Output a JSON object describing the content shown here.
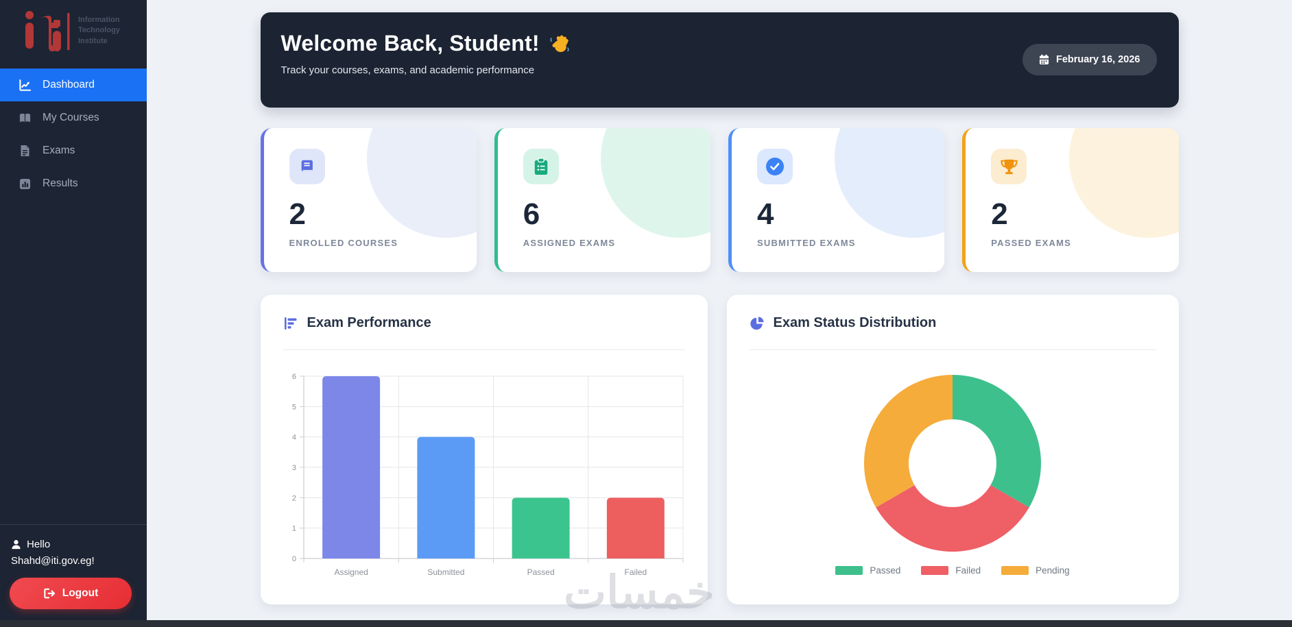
{
  "sidebar": {
    "logo": {
      "mark": "iti",
      "lines": [
        "Information",
        "Technology",
        "Institute"
      ],
      "mark_color": "#b23737"
    },
    "items": [
      {
        "label": "Dashboard",
        "icon": "chart-line-icon",
        "active": true
      },
      {
        "label": "My Courses",
        "icon": "book-open-icon",
        "active": false
      },
      {
        "label": "Exams",
        "icon": "file-lines-icon",
        "active": false
      },
      {
        "label": "Results",
        "icon": "chart-square-icon",
        "active": false
      }
    ],
    "active_color": "#1a71f3",
    "footer": {
      "greeting": "Hello",
      "email": "Shahd@iti.gov.eg!",
      "logout_label": "Logout",
      "logout_color": "#e94045"
    }
  },
  "banner": {
    "title": "Welcome Back, Student!",
    "subtitle": "Track your courses, exams, and academic performance",
    "date": "February 16, 2026",
    "bg": "#1c2433"
  },
  "stats": [
    {
      "value": "2",
      "label": "ENROLLED COURSES",
      "icon": "book-icon",
      "accent": "#6673e5",
      "tile_bg": "#e0e6fa",
      "icon_color": "#5a6ee0",
      "blob": "#e9eef9"
    },
    {
      "value": "6",
      "label": "ASSIGNED EXAMS",
      "icon": "clipboard-icon",
      "accent": "#2cbd90",
      "tile_bg": "#d6f3e7",
      "icon_color": "#17aa7d",
      "blob": "#def5ec"
    },
    {
      "value": "4",
      "label": "SUBMITTED EXAMS",
      "icon": "check-circle-icon",
      "accent": "#4e90f6",
      "tile_bg": "#dbe8fd",
      "icon_color": "#3b82f6",
      "blob": "#e4edfc"
    },
    {
      "value": "2",
      "label": "PASSED EXAMS",
      "icon": "trophy-icon",
      "accent": "#f2a21a",
      "tile_bg": "#fcecd0",
      "icon_color": "#f0930d",
      "blob": "#fdf2dd"
    }
  ],
  "chart_data": [
    {
      "type": "bar",
      "title": "Exam Performance",
      "categories": [
        "Assigned",
        "Submitted",
        "Passed",
        "Failed"
      ],
      "values": [
        6,
        4,
        2,
        2
      ],
      "colors": [
        "#7c87e8",
        "#5b9bf5",
        "#3cc48e",
        "#ed5f5f"
      ],
      "xlabel": "",
      "ylabel": "",
      "ylim": [
        0,
        6
      ],
      "yticks": [
        0,
        1,
        2,
        3,
        4,
        5,
        6
      ],
      "grid": true,
      "legend": "none"
    },
    {
      "type": "pie",
      "subtype": "doughnut",
      "title": "Exam Status Distribution",
      "labels": [
        "Passed",
        "Failed",
        "Pending"
      ],
      "values": [
        2,
        2,
        2
      ],
      "colors": [
        "#3ec08d",
        "#ef5f66",
        "#f5ac3b"
      ],
      "cutout_ratio": 0.5,
      "legend_position": "bottom"
    }
  ],
  "watermark": "خمسات"
}
